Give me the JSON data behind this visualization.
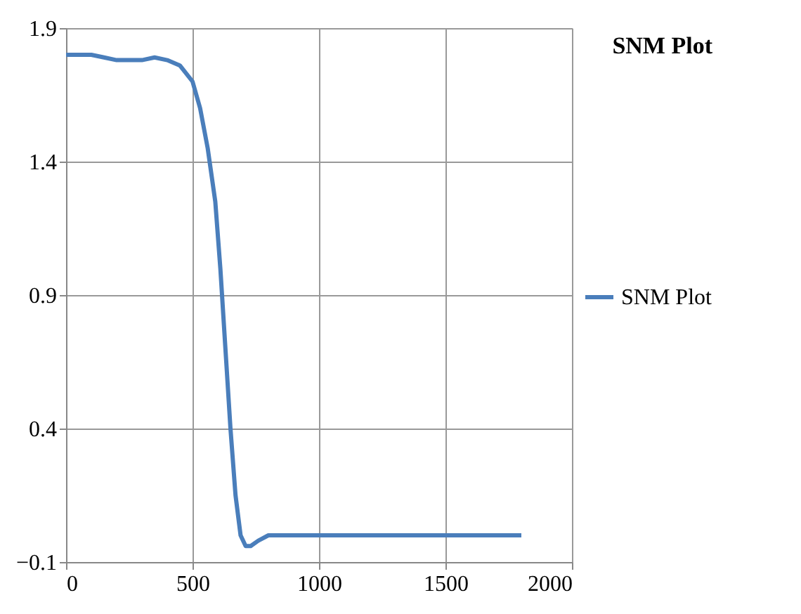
{
  "chart_data": {
    "type": "line",
    "title": "SNM Plot",
    "x": [
      0,
      50,
      100,
      150,
      200,
      250,
      300,
      350,
      400,
      450,
      500,
      530,
      560,
      590,
      610,
      630,
      650,
      670,
      690,
      710,
      730,
      760,
      800,
      900,
      1000,
      1200,
      1400,
      1600,
      1800
    ],
    "series": [
      {
        "name": "SNM Plot",
        "color": "#4a7ebb",
        "values": [
          1.8,
          1.8,
          1.8,
          1.79,
          1.78,
          1.78,
          1.78,
          1.79,
          1.78,
          1.76,
          1.7,
          1.6,
          1.45,
          1.25,
          1.0,
          0.7,
          0.4,
          0.15,
          0.0,
          -0.04,
          -0.04,
          -0.02,
          0.0,
          0.0,
          0.0,
          0.0,
          0.0,
          0.0,
          0.0
        ]
      }
    ],
    "xlim": [
      0,
      2000
    ],
    "xticks": [
      0,
      500,
      1000,
      1500,
      2000
    ],
    "ylim": [
      -0.1,
      1.9
    ],
    "yticks": [
      -0.1,
      0.4,
      0.9,
      1.4,
      1.9
    ],
    "grid": true,
    "legend": "right",
    "marker": "none",
    "line_style": "solid"
  }
}
